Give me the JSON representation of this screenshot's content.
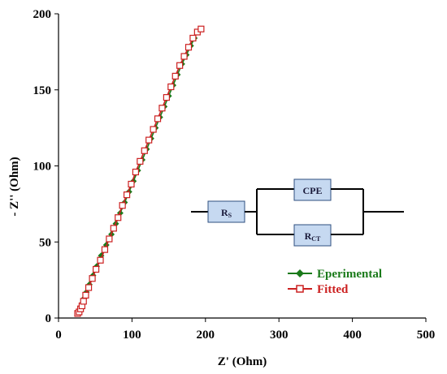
{
  "chart_data": {
    "type": "scatter",
    "title": "",
    "xlabel": "Z' (Ohm)",
    "ylabel": "- Z'' (Ohm)",
    "xlim": [
      0,
      500
    ],
    "ylim": [
      0,
      200
    ],
    "xticks": [
      "0",
      "100",
      "200",
      "300",
      "400",
      "500"
    ],
    "yticks": [
      "0",
      "50",
      "100",
      "150",
      "200"
    ],
    "grid": false,
    "legend_position": "bottom-right",
    "series": [
      {
        "name": "Eperimental",
        "color": "#1a7a1a",
        "marker": "diamond",
        "x": [
          27,
          29,
          31,
          33,
          35,
          38,
          42,
          47,
          52,
          58,
          65,
          72,
          78,
          84,
          90,
          96,
          102,
          108,
          114,
          120,
          126,
          132,
          138,
          144,
          150,
          156,
          162,
          168,
          174,
          180,
          185
        ],
        "y": [
          4,
          5,
          7,
          10,
          13,
          17,
          22,
          28,
          34,
          41,
          48,
          55,
          62,
          69,
          76,
          83,
          90,
          97,
          104,
          111,
          118,
          125,
          132,
          139,
          146,
          153,
          160,
          167,
          173,
          179,
          184
        ]
      },
      {
        "name": "Fitted",
        "color": "#cc2020",
        "marker": "square",
        "x": [
          26,
          28,
          30,
          32,
          34,
          37,
          41,
          46,
          51,
          57,
          63,
          69,
          75,
          81,
          87,
          93,
          99,
          105,
          111,
          117,
          123,
          129,
          135,
          141,
          147,
          153,
          159,
          165,
          171,
          177,
          183,
          189,
          194
        ],
        "y": [
          3,
          4,
          6,
          8,
          11,
          15,
          20,
          26,
          32,
          38,
          45,
          52,
          59,
          66,
          74,
          81,
          88,
          96,
          103,
          110,
          117,
          124,
          131,
          138,
          145,
          152,
          159,
          166,
          172,
          178,
          184,
          188,
          190
        ]
      }
    ],
    "circuit": {
      "rs_label": "R",
      "rs_sub": "S",
      "cpe_label": "CPE",
      "rct_label": "R",
      "rct_sub": "CT"
    }
  }
}
